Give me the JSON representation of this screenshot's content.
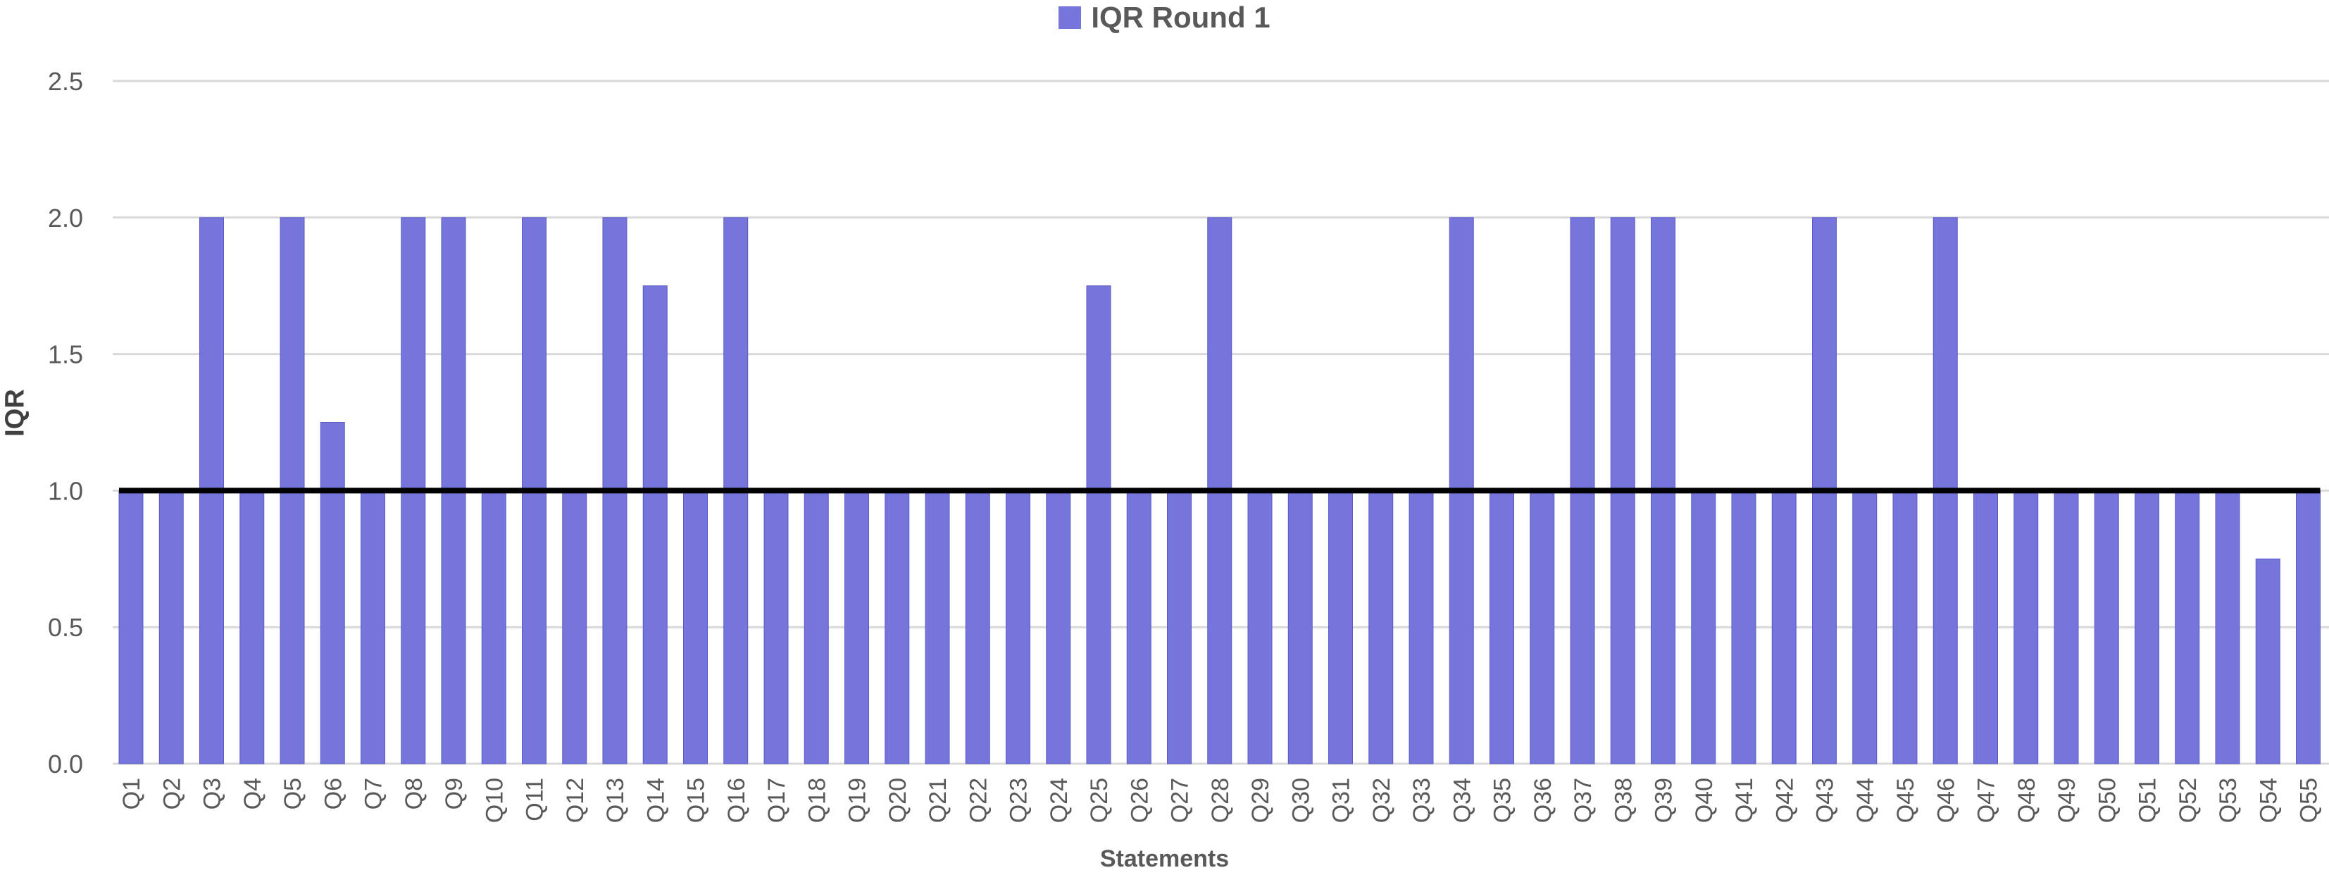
{
  "chart_data": {
    "type": "bar",
    "title": "",
    "xlabel": "Statements",
    "ylabel": "IQR",
    "ylim": [
      0,
      2.5
    ],
    "yticks": [
      "0.0",
      "0.5",
      "1.0",
      "1.5",
      "2.0",
      "2.5"
    ],
    "grid": true,
    "legend_position": "top-center",
    "categories": [
      "Q1",
      "Q2",
      "Q3",
      "Q4",
      "Q5",
      "Q6",
      "Q7",
      "Q8",
      "Q9",
      "Q10",
      "Q11",
      "Q12",
      "Q13",
      "Q14",
      "Q15",
      "Q16",
      "Q17",
      "Q18",
      "Q19",
      "Q20",
      "Q21",
      "Q22",
      "Q23",
      "Q24",
      "Q25",
      "Q26",
      "Q27",
      "Q28",
      "Q29",
      "Q30",
      "Q31",
      "Q32",
      "Q33",
      "Q34",
      "Q35",
      "Q36",
      "Q37",
      "Q38",
      "Q39",
      "Q40",
      "Q41",
      "Q42",
      "Q43",
      "Q44",
      "Q45",
      "Q46",
      "Q47",
      "Q48",
      "Q49",
      "Q50",
      "Q51",
      "Q52",
      "Q53",
      "Q54",
      "Q55"
    ],
    "series": [
      {
        "name": "IQR Round 1",
        "color": "#7575DB",
        "values": [
          1,
          1,
          2,
          1,
          2,
          1.25,
          1,
          2,
          2,
          1,
          2,
          1,
          2,
          1.75,
          1,
          2,
          1,
          1,
          1,
          1,
          1,
          1,
          1,
          1,
          1.75,
          1,
          1,
          2,
          1,
          1,
          1,
          1,
          1,
          2,
          1,
          1,
          2,
          2,
          2,
          1,
          1,
          1,
          2,
          1,
          1,
          2,
          1,
          1,
          1,
          1,
          1,
          1,
          1,
          0.75,
          1
        ]
      }
    ],
    "reference_line": {
      "y": 1.0,
      "color": "#000000"
    }
  }
}
